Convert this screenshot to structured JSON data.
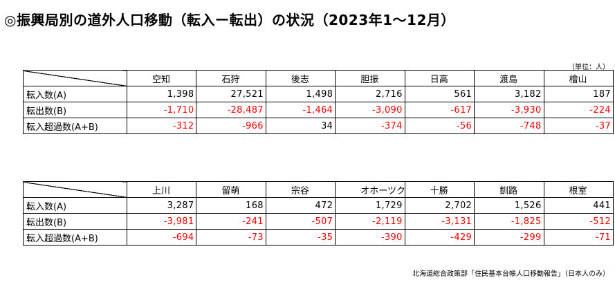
{
  "title": "◎振興局別の道外人口移動（転入ー転出）の状況（2023年1～12月）",
  "unit_note": "（単位：人）",
  "tables": [
    {
      "regions": [
        "空知",
        "石狩",
        "後志",
        "胆振",
        "日高",
        "渡島",
        "檜山"
      ],
      "rows": [
        {
          "label": "転入数(A)",
          "values": [
            "1,398",
            "27,521",
            "1,498",
            "2,716",
            "561",
            "3,182",
            "187"
          ]
        },
        {
          "label": "転出数(B)",
          "values": [
            "-1,710",
            "-28,487",
            "-1,464",
            "-3,090",
            "-617",
            "-3,930",
            "-224"
          ]
        },
        {
          "label": "転入超過数(A+B)",
          "values": [
            "-312",
            "-966",
            "34",
            "-374",
            "-56",
            "-748",
            "-37"
          ]
        }
      ]
    },
    {
      "regions": [
        "上川",
        "留萌",
        "宗谷",
        "オホーツク",
        "十勝",
        "釧路",
        "根室"
      ],
      "rows": [
        {
          "label": "転入数(A)",
          "values": [
            "3,287",
            "168",
            "472",
            "1,729",
            "2,702",
            "1,526",
            "441"
          ]
        },
        {
          "label": "転出数(B)",
          "values": [
            "-3,981",
            "-241",
            "-507",
            "-2,119",
            "-3,131",
            "-1,825",
            "-512"
          ]
        },
        {
          "label": "転入超過数(A+B)",
          "values": [
            "-694",
            "-73",
            "-35",
            "-390",
            "-429",
            "-299",
            "-71"
          ]
        }
      ]
    }
  ],
  "source_note": "北海道総合政策部「住民基本台帳人口移動報告」（日本人のみ）",
  "colors": {
    "negative": "#ff0000",
    "text": "#000000"
  }
}
